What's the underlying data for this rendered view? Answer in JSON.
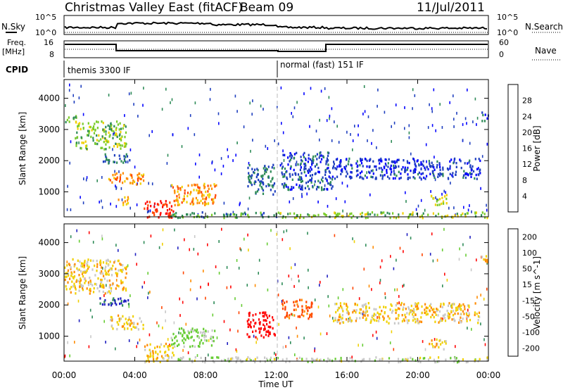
{
  "header": {
    "title": "Christmas Valley East (fitACF)",
    "beam": "Beam 09",
    "date": "11/Jul/2011"
  },
  "panels": {
    "noise_left_label": "N.Sky",
    "noise_right_label": "N.Search",
    "noise_ticks": [
      "10^5",
      "10^0"
    ],
    "freq_left_label_1": "Freq.",
    "freq_left_label_2": "[MHz]",
    "freq_ticks": [
      "16",
      "8"
    ],
    "nave_ticks": [
      "60",
      "0"
    ],
    "nave_label": "Nave",
    "cpid_label": "CPID",
    "cpid_modes": [
      "themis 3300 IF",
      "normal (fast) 151 IF"
    ]
  },
  "chart_data": [
    {
      "type": "heatmap",
      "title": "",
      "xlabel": "Time UT",
      "ylabel": "Slant Range [km]",
      "xlim": [
        0,
        24
      ],
      "ylim": [
        200,
        4600
      ],
      "xticklabels": [
        "00:00",
        "04:00",
        "08:00",
        "12:00",
        "16:00",
        "20:00",
        "00:00"
      ],
      "yticks": [
        1000,
        2000,
        3000,
        4000
      ],
      "colorbar": {
        "label": "Power [dB]",
        "ticks": [
          4,
          8,
          12,
          16,
          20,
          24,
          28
        ],
        "colors": [
          "#0000ff",
          "#1f3fbf",
          "#2e8b57",
          "#7acc29",
          "#f0d000",
          "#ff8c00",
          "#ff4500",
          "#ff0000"
        ]
      },
      "regions": [
        {
          "t0": 0.0,
          "t1": 0.7,
          "r0": 3250,
          "r1": 3500,
          "value": 12
        },
        {
          "t0": 0.6,
          "t1": 3.5,
          "r0": 2400,
          "r1": 3300,
          "value": 14
        },
        {
          "t0": 2.0,
          "t1": 3.7,
          "r0": 1950,
          "r1": 2250,
          "value": 8
        },
        {
          "t0": 2.5,
          "t1": 4.5,
          "r0": 1250,
          "r1": 1650,
          "value": 22
        },
        {
          "t0": 3.0,
          "t1": 3.6,
          "r0": 600,
          "r1": 900,
          "value": 20
        },
        {
          "t0": 4.5,
          "t1": 6.2,
          "r0": 200,
          "r1": 750,
          "value": 28
        },
        {
          "t0": 6.0,
          "t1": 8.6,
          "r0": 600,
          "r1": 1300,
          "value": 22
        },
        {
          "t0": 6.0,
          "t1": 12.0,
          "r0": 200,
          "r1": 380,
          "value": 10
        },
        {
          "t0": 10.3,
          "t1": 11.9,
          "r0": 950,
          "r1": 1900,
          "value": 8
        },
        {
          "t0": 12.0,
          "t1": 24.0,
          "r0": 200,
          "r1": 380,
          "value": 14
        },
        {
          "t0": 12.2,
          "t1": 15.2,
          "r0": 1100,
          "r1": 2300,
          "value": 6
        },
        {
          "t0": 15.2,
          "t1": 23.5,
          "r0": 1450,
          "r1": 2100,
          "value": 5
        },
        {
          "t0": 20.6,
          "t1": 21.6,
          "r0": 600,
          "r1": 950,
          "value": 16
        },
        {
          "t0": 23.6,
          "t1": 24.0,
          "r0": 3300,
          "r1": 3600,
          "value": 6
        }
      ]
    },
    {
      "type": "heatmap",
      "title": "",
      "xlabel": "Time UT",
      "ylabel": "Slant Range [km]",
      "xlim": [
        0,
        24
      ],
      "ylim": [
        200,
        4600
      ],
      "xticklabels": [
        "00:00",
        "04:00",
        "08:00",
        "12:00",
        "16:00",
        "20:00",
        "00:00"
      ],
      "yticks": [
        1000,
        2000,
        3000,
        4000
      ],
      "colorbar": {
        "label": "Velocity [m s^-1]",
        "ticks": [
          200,
          100,
          50,
          15,
          -15,
          -50,
          -100,
          -200
        ],
        "colors": [
          "#2020c0",
          "#2e8b57",
          "#66cc33",
          "#c8c8c8",
          "#f0d000",
          "#ff8c00",
          "#ff4500",
          "#ff0000"
        ]
      },
      "regions": [
        {
          "t0": 0.0,
          "t1": 3.5,
          "r0": 2400,
          "r1": 3500,
          "value": 0
        },
        {
          "t0": 2.0,
          "t1": 3.7,
          "r0": 1950,
          "r1": 2250,
          "value": 210
        },
        {
          "t0": 2.5,
          "t1": 4.5,
          "r0": 1250,
          "r1": 1700,
          "value": 0
        },
        {
          "t0": 4.5,
          "t1": 6.2,
          "r0": 200,
          "r1": 800,
          "value": 0
        },
        {
          "t0": 6.0,
          "t1": 8.5,
          "r0": 700,
          "r1": 1300,
          "value": 60
        },
        {
          "t0": 6.0,
          "t1": 24.0,
          "r0": 200,
          "r1": 360,
          "value": 40
        },
        {
          "t0": 10.3,
          "t1": 11.9,
          "r0": 1000,
          "r1": 1800,
          "value": -150
        },
        {
          "t0": 12.3,
          "t1": 14.0,
          "r0": 1600,
          "r1": 2200,
          "value": -60
        },
        {
          "t0": 15.2,
          "t1": 23.5,
          "r0": 1450,
          "r1": 2100,
          "value": 0
        },
        {
          "t0": 20.6,
          "t1": 21.6,
          "r0": 600,
          "r1": 950,
          "value": 0
        },
        {
          "t0": 23.6,
          "t1": 24.0,
          "r0": 3300,
          "r1": 3600,
          "value": 0
        }
      ]
    }
  ]
}
